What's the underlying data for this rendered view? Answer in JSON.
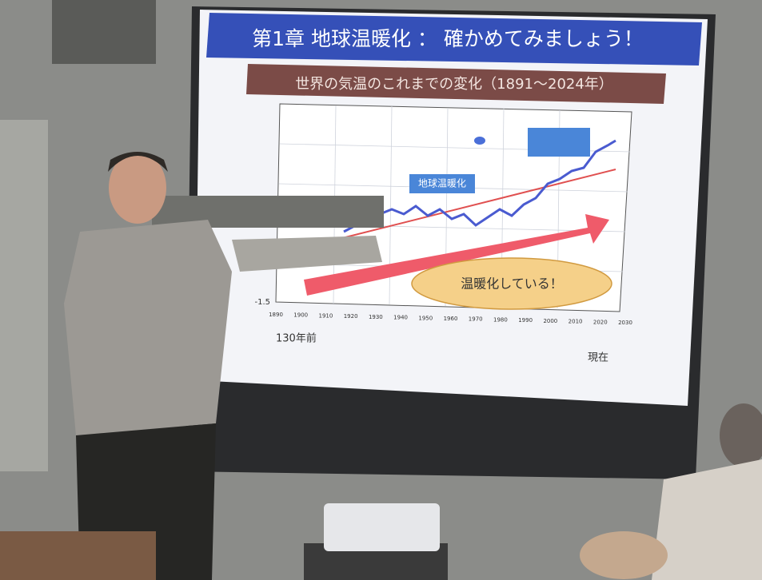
{
  "slide": {
    "title": "第1章 地球温暖化 ： 確かめてみましょう！",
    "subtitle": "世界の気温のこれまでの変化（1891～2024年）",
    "callout": "地球温暖化",
    "cloud_text": "温暖化している！",
    "y_tick_bottom": "-1.5",
    "x_ticks": [
      "1890",
      "1900",
      "1910",
      "1920",
      "1930",
      "1940",
      "1950",
      "1960",
      "1970",
      "1980",
      "1990",
      "2000",
      "2010",
      "2020",
      "2030"
    ],
    "note_left": "130年前",
    "note_right": "現在"
  }
}
